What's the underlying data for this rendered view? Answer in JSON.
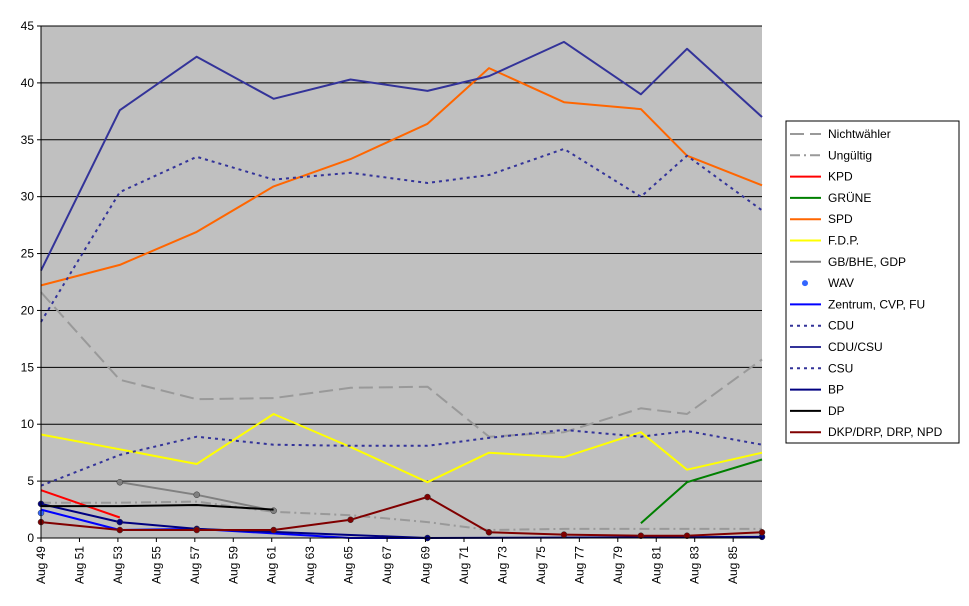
{
  "chart_data": {
    "type": "line",
    "title": "",
    "xlabel": "",
    "ylabel": "",
    "ylim": [
      0,
      45
    ],
    "yticks": [
      0,
      5,
      10,
      15,
      20,
      25,
      30,
      35,
      40,
      45
    ],
    "xlim": [
      1949.6,
      1987.1
    ],
    "xticks": [
      "Aug 49",
      "Aug 51",
      "Aug 53",
      "Aug 55",
      "Aug 57",
      "Aug 59",
      "Aug 61",
      "Aug 63",
      "Aug 65",
      "Aug 67",
      "Aug 69",
      "Aug 71",
      "Aug 73",
      "Aug 75",
      "Aug 77",
      "Aug 79",
      "Aug 81",
      "Aug 83",
      "Aug 85"
    ],
    "grid": "horizontal",
    "legend_position": "right",
    "colors": {
      "plot_background": "#c0c0c0",
      "grid": "#000000"
    },
    "series": [
      {
        "name": "Nichtwähler",
        "color": "#999999",
        "dash": "long-dash",
        "marker": "none",
        "x": [
          1949.6,
          1953.7,
          1957.7,
          1961.7,
          1965.7,
          1969.7,
          1972.9,
          1976.8,
          1980.8,
          1983.2,
          1987.1
        ],
        "y": [
          21.6,
          13.9,
          12.2,
          12.3,
          13.2,
          13.3,
          8.9,
          9.3,
          11.4,
          10.9,
          15.7
        ]
      },
      {
        "name": "Ungültig",
        "color": "#999999",
        "dash": "dash-dot",
        "marker": "none",
        "x": [
          1949.6,
          1953.7,
          1957.7,
          1961.7,
          1965.7,
          1969.7,
          1972.9,
          1976.8,
          1980.8,
          1983.2,
          1987.1
        ],
        "y": [
          3.1,
          3.1,
          3.2,
          2.3,
          2.0,
          1.4,
          0.7,
          0.8,
          0.8,
          0.8,
          0.8
        ]
      },
      {
        "name": "KPD",
        "color": "#ff0000",
        "dash": "solid",
        "marker": "none",
        "x": [
          1949.6,
          1953.7
        ],
        "y": [
          4.2,
          1.8
        ]
      },
      {
        "name": "GRÜNE",
        "color": "#008000",
        "dash": "solid",
        "marker": "none",
        "x": [
          1980.8,
          1983.2,
          1987.1
        ],
        "y": [
          1.3,
          4.9,
          6.9
        ]
      },
      {
        "name": "SPD",
        "color": "#ff6600",
        "dash": "solid",
        "marker": "none",
        "x": [
          1949.6,
          1953.7,
          1957.7,
          1961.7,
          1965.7,
          1969.7,
          1972.9,
          1976.8,
          1980.8,
          1983.2,
          1987.1
        ],
        "y": [
          22.2,
          24.0,
          26.9,
          30.9,
          33.3,
          36.4,
          41.3,
          38.3,
          37.7,
          33.6,
          31.0
        ]
      },
      {
        "name": "F.D.P.",
        "color": "#ffff00",
        "dash": "solid",
        "marker": "none",
        "x": [
          1949.6,
          1953.7,
          1957.7,
          1961.7,
          1965.7,
          1969.7,
          1972.9,
          1976.8,
          1980.8,
          1983.2,
          1987.1
        ],
        "y": [
          9.1,
          7.8,
          6.5,
          10.9,
          8.0,
          4.9,
          7.5,
          7.1,
          9.3,
          6.0,
          7.5
        ]
      },
      {
        "name": "GB/BHE, GDP",
        "color": "#808080",
        "dash": "solid",
        "marker": "circle",
        "x": [
          1953.7,
          1957.7,
          1961.7
        ],
        "y": [
          4.9,
          3.8,
          2.4
        ]
      },
      {
        "name": "WAV",
        "color": "#3366ff",
        "dash": "none",
        "marker": "circle",
        "x": [
          1949.6
        ],
        "y": [
          2.2
        ]
      },
      {
        "name": "Zentrum, CVP, FU",
        "color": "#0000ff",
        "dash": "solid",
        "marker": "none",
        "x": [
          1949.6,
          1953.7,
          1957.7,
          1965.7,
          1969.7
        ],
        "y": [
          2.5,
          0.7,
          0.8,
          0.0,
          0.0
        ]
      },
      {
        "name": "CDU",
        "color": "#333399",
        "dash": "dot",
        "marker": "none",
        "x": [
          1949.6,
          1953.7,
          1957.7,
          1961.7,
          1965.7,
          1969.7,
          1972.9,
          1976.8,
          1980.8,
          1983.2,
          1987.1
        ],
        "y": [
          19.0,
          30.4,
          33.5,
          31.5,
          32.1,
          31.2,
          31.9,
          34.2,
          30.0,
          33.6,
          28.8
        ]
      },
      {
        "name": "CDU/CSU",
        "color": "#333399",
        "dash": "solid",
        "marker": "none",
        "x": [
          1949.6,
          1953.7,
          1957.7,
          1961.7,
          1965.7,
          1969.7,
          1972.9,
          1976.8,
          1980.8,
          1983.2,
          1987.1
        ],
        "y": [
          23.5,
          37.6,
          42.3,
          38.6,
          40.3,
          39.3,
          40.6,
          43.6,
          39.0,
          43.0,
          37.0
        ]
      },
      {
        "name": "CSU",
        "color": "#333399",
        "dash": "dot",
        "marker": "none",
        "x": [
          1949.6,
          1953.7,
          1957.7,
          1961.7,
          1965.7,
          1969.7,
          1972.9,
          1976.8,
          1980.8,
          1983.2,
          1987.1
        ],
        "y": [
          4.6,
          7.3,
          8.9,
          8.2,
          8.1,
          8.1,
          8.8,
          9.5,
          8.9,
          9.4,
          8.2
        ]
      },
      {
        "name": "BP",
        "color": "#000080",
        "dash": "solid",
        "marker": "circle",
        "x": [
          1949.6,
          1953.7,
          1957.7,
          1969.7,
          1987.1
        ],
        "y": [
          3.0,
          1.4,
          0.8,
          0.0,
          0.1
        ]
      },
      {
        "name": "DP",
        "color": "#000000",
        "dash": "solid",
        "marker": "none",
        "x": [
          1949.6,
          1953.7,
          1957.7,
          1961.7
        ],
        "y": [
          2.8,
          2.8,
          2.9,
          2.5
        ]
      },
      {
        "name": "DKP/DRP, DRP, NPD",
        "color": "#800000",
        "dash": "solid",
        "marker": "circle",
        "x": [
          1949.6,
          1953.7,
          1957.7,
          1961.7,
          1965.7,
          1969.7,
          1972.9,
          1976.8,
          1980.8,
          1983.2,
          1987.1
        ],
        "y": [
          1.4,
          0.7,
          0.7,
          0.7,
          1.6,
          3.6,
          0.5,
          0.3,
          0.2,
          0.2,
          0.5
        ]
      }
    ]
  }
}
